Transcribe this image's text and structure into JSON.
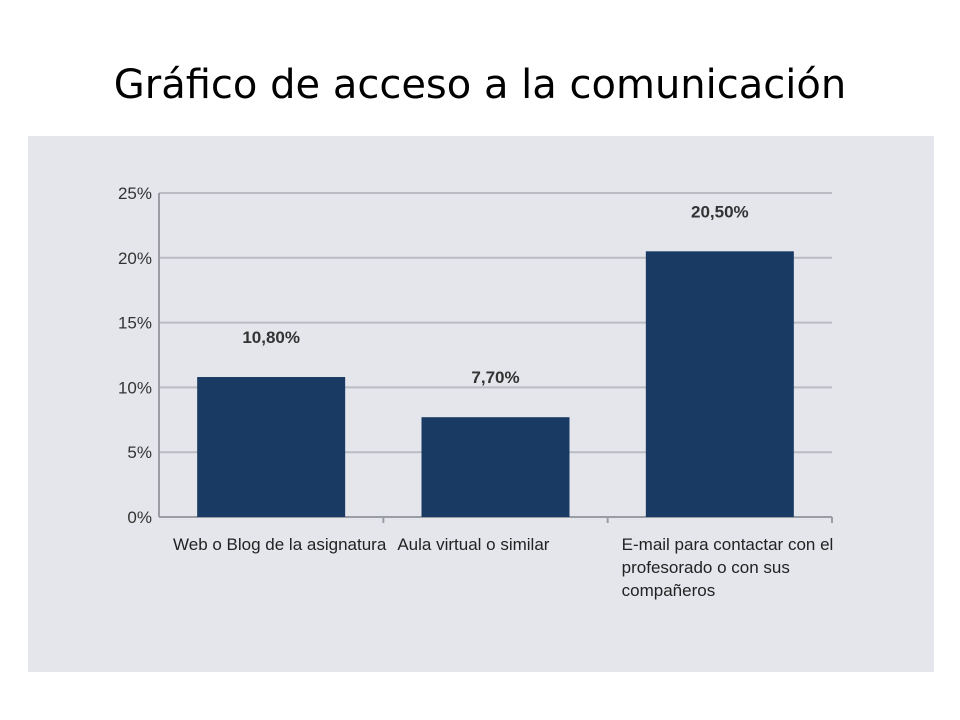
{
  "slide": {
    "title": "Gráfico de acceso a la comunicación"
  },
  "chart_data": {
    "type": "bar",
    "categories": [
      [
        "Web o Blog de la asignatura"
      ],
      [
        "Aula virtual o similar"
      ],
      [
        "E-mail para contactar con el",
        "profesorado  o con sus",
        "compañeros"
      ]
    ],
    "values": [
      10.8,
      7.7,
      20.5
    ],
    "data_labels": [
      "10,80%",
      "7,70%",
      "20,50%"
    ],
    "yticks": [
      "0%",
      "5%",
      "10%",
      "15%",
      "20%",
      "25%"
    ],
    "ylim": [
      0,
      25
    ],
    "grid": true,
    "bar_color": "#183a63",
    "panel_color": "#e4e6ec"
  }
}
